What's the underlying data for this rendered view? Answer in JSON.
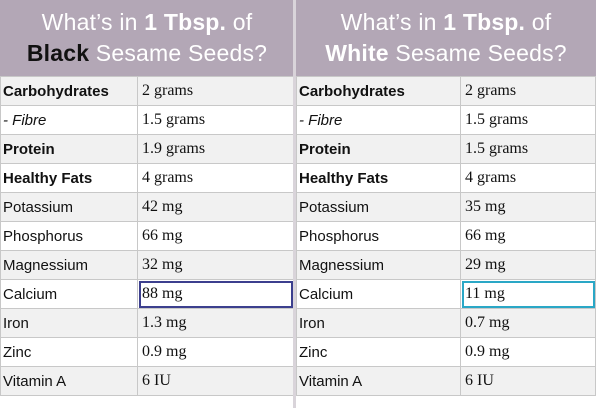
{
  "left": {
    "header": {
      "line1_pre": "What’s in ",
      "line1_bold": "1 Tbsp.",
      "line1_post": " of",
      "line2_bold": "Black",
      "line2_post": " Sesame Seeds?"
    },
    "rows": [
      {
        "nutrient": "Carbohydrates",
        "value": "2 grams",
        "style": "bold"
      },
      {
        "nutrient": "- Fibre",
        "value": "1.5 grams",
        "style": "italic"
      },
      {
        "nutrient": "Protein",
        "value": "1.9 grams",
        "style": "bold"
      },
      {
        "nutrient": "Healthy Fats",
        "value": "4 grams",
        "style": "bold"
      },
      {
        "nutrient": "Potassium",
        "value": "42 mg",
        "style": ""
      },
      {
        "nutrient": "Phosphorus",
        "value": "66 mg",
        "style": ""
      },
      {
        "nutrient": "Magnessium",
        "value": "32 mg",
        "style": ""
      },
      {
        "nutrient": "Calcium",
        "value": "88 mg",
        "style": "",
        "highlight": "blue"
      },
      {
        "nutrient": "Iron",
        "value": "1.3 mg",
        "style": ""
      },
      {
        "nutrient": "Zinc",
        "value": "0.9 mg",
        "style": ""
      },
      {
        "nutrient": "Vitamin A",
        "value": "6 IU",
        "style": ""
      }
    ]
  },
  "right": {
    "header": {
      "line1_pre": "What’s in ",
      "line1_bold": "1 Tbsp.",
      "line1_post": " of",
      "line2_bold": "White",
      "line2_post": " Sesame Seeds?"
    },
    "rows": [
      {
        "nutrient": "Carbohydrates",
        "value": "2 grams",
        "style": "bold"
      },
      {
        "nutrient": "- Fibre",
        "value": "1.5 grams",
        "style": "italic"
      },
      {
        "nutrient": "Protein",
        "value": "1.5 grams",
        "style": "bold"
      },
      {
        "nutrient": "Healthy Fats",
        "value": "4 grams",
        "style": "bold"
      },
      {
        "nutrient": "Potassium",
        "value": "35 mg",
        "style": ""
      },
      {
        "nutrient": "Phosphorus",
        "value": "66 mg",
        "style": ""
      },
      {
        "nutrient": "Magnessium",
        "value": "29 mg",
        "style": ""
      },
      {
        "nutrient": "Calcium",
        "value": "11 mg",
        "style": "",
        "highlight": "teal"
      },
      {
        "nutrient": "Iron",
        "value": "0.7 mg",
        "style": ""
      },
      {
        "nutrient": "Zinc",
        "value": "0.9 mg",
        "style": ""
      },
      {
        "nutrient": "Vitamin A",
        "value": "6 IU",
        "style": ""
      }
    ]
  },
  "colors": {
    "header_bg": "#b3a7b6",
    "highlight_blue": "#3c3f8e",
    "highlight_teal": "#2aa7c6"
  }
}
